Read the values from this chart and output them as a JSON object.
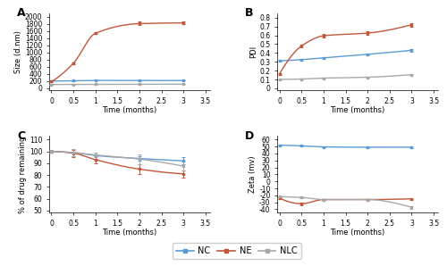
{
  "time": [
    0,
    0.5,
    1,
    2,
    3
  ],
  "A": {
    "NC": [
      200,
      210,
      220,
      215,
      218
    ],
    "NE": [
      185,
      700,
      1540,
      1810,
      1830
    ],
    "NLC": [
      105,
      108,
      112,
      112,
      115
    ],
    "NC_err": [
      5,
      8,
      10,
      8,
      8
    ],
    "NE_err": [
      8,
      25,
      30,
      50,
      40
    ],
    "NLC_err": [
      4,
      4,
      4,
      4,
      4
    ],
    "ylabel": "Size (d.nm)",
    "yticks": [
      0,
      200,
      400,
      600,
      800,
      1000,
      1200,
      1400,
      1600,
      1800,
      2000
    ],
    "ylim": [
      -50,
      2100
    ]
  },
  "B": {
    "NC": [
      0.31,
      0.325,
      0.345,
      0.385,
      0.43
    ],
    "NE": [
      0.165,
      0.48,
      0.595,
      0.625,
      0.72
    ],
    "NLC": [
      0.1,
      0.105,
      0.115,
      0.125,
      0.155
    ],
    "NC_err": [
      0.01,
      0.01,
      0.01,
      0.01,
      0.015
    ],
    "NE_err": [
      0.01,
      0.015,
      0.02,
      0.02,
      0.02
    ],
    "NLC_err": [
      0.005,
      0.005,
      0.005,
      0.005,
      0.005
    ],
    "ylabel": "PDI",
    "yticks": [
      0,
      0.1,
      0.2,
      0.3,
      0.4,
      0.5,
      0.6,
      0.7,
      0.8
    ],
    "ylim": [
      -0.02,
      0.85
    ]
  },
  "C": {
    "NC": [
      100,
      99,
      96.5,
      94,
      92
    ],
    "NE": [
      100,
      98.5,
      93,
      85,
      81
    ],
    "NLC": [
      100,
      99,
      97,
      93.5,
      87.5
    ],
    "NC_err": [
      1,
      3,
      2.5,
      2,
      3
    ],
    "NE_err": [
      1,
      3,
      3,
      4,
      3
    ],
    "NLC_err": [
      1,
      3,
      2,
      4,
      4
    ],
    "ylabel": "% of drug remaining",
    "yticks": [
      50,
      60,
      70,
      80,
      90,
      100,
      110
    ],
    "ylim": [
      48,
      113
    ]
  },
  "D": {
    "NC": [
      52,
      51,
      49.5,
      49,
      49
    ],
    "NE": [
      -24,
      -32,
      -26,
      -26,
      -25
    ],
    "NLC": [
      -22,
      -23,
      -26,
      -26,
      -37
    ],
    "NC_err": [
      1,
      1,
      1,
      1,
      1
    ],
    "NE_err": [
      1,
      2,
      1,
      1,
      1
    ],
    "NLC_err": [
      1,
      1,
      1,
      1,
      2
    ],
    "ylabel": "Zeta (mv)",
    "yticks": [
      -40,
      -30,
      -20,
      -10,
      0,
      10,
      20,
      30,
      40,
      50,
      60
    ],
    "ylim": [
      -45,
      65
    ]
  },
  "colors": {
    "NC": "#5B9BD5",
    "NE": "#C0573A",
    "NLC": "#A8A8A8"
  },
  "xlabel": "Time (months)",
  "xlim": [
    -0.05,
    3.6
  ],
  "xticks": [
    0,
    0.5,
    1,
    1.5,
    2,
    2.5,
    3,
    3.5
  ],
  "panel_labels": [
    "A",
    "B",
    "C",
    "D"
  ],
  "legend_labels": [
    "NC",
    "NE",
    "NLC"
  ]
}
